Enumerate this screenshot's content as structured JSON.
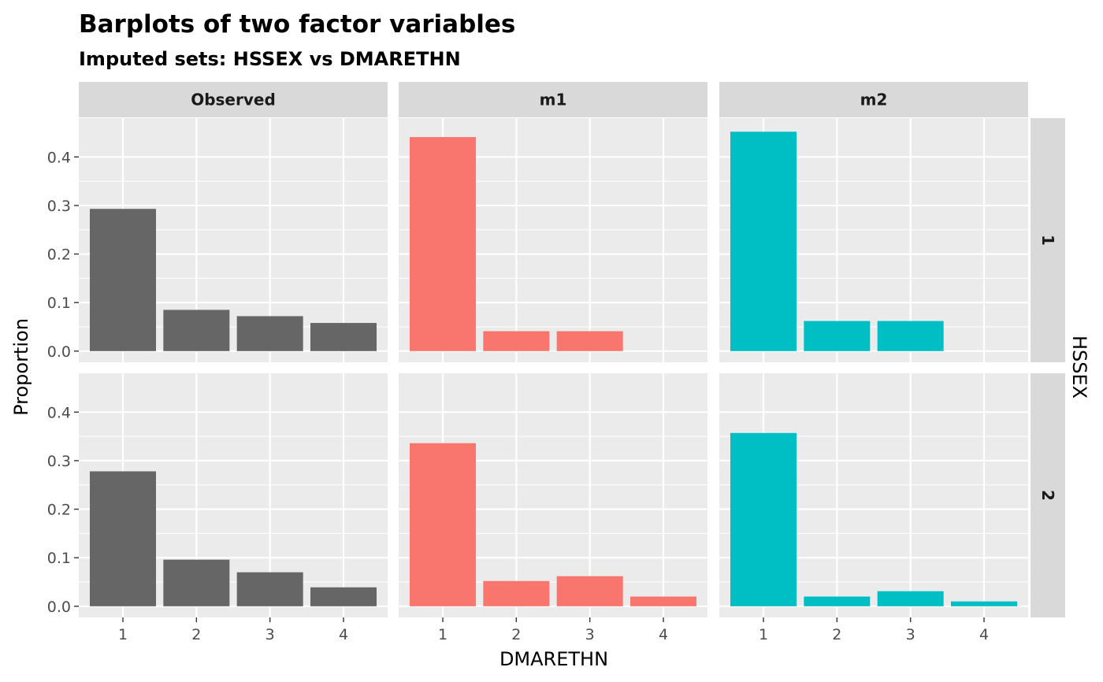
{
  "chart_data": {
    "type": "bar",
    "title": "Barplots of two factor variables",
    "subtitle": "Imputed sets:  HSSEX vs DMARETHN",
    "xlabel": "DMARETHN",
    "ylabel": "Proportion",
    "facet_col_labels": [
      "Observed",
      "m1",
      "m2"
    ],
    "facet_row_title": "HSSEX",
    "facet_row_labels": [
      "1",
      "2"
    ],
    "categories": [
      "1",
      "2",
      "3",
      "4"
    ],
    "y_ticks": [
      "0.0",
      "0.1",
      "0.2",
      "0.3",
      "0.4"
    ],
    "ylim": [
      -0.023,
      0.48
    ],
    "grid": true,
    "colors": {
      "Observed": "#666666",
      "m1": "#F8766D",
      "m2": "#00BFC4",
      "panel_bg": "#EBEBEB",
      "strip_bg": "#D9D9D9"
    },
    "panels": [
      {
        "row": "1",
        "col": "Observed",
        "values": [
          0.293,
          0.085,
          0.072,
          0.058
        ]
      },
      {
        "row": "1",
        "col": "m1",
        "values": [
          0.441,
          0.041,
          0.041,
          0
        ]
      },
      {
        "row": "1",
        "col": "m2",
        "values": [
          0.452,
          0.062,
          0.062,
          0
        ]
      },
      {
        "row": "2",
        "col": "Observed",
        "values": [
          0.278,
          0.096,
          0.07,
          0.039
        ]
      },
      {
        "row": "2",
        "col": "m1",
        "values": [
          0.336,
          0.052,
          0.062,
          0.02
        ]
      },
      {
        "row": "2",
        "col": "m2",
        "values": [
          0.357,
          0.02,
          0.031,
          0.01
        ]
      }
    ]
  }
}
